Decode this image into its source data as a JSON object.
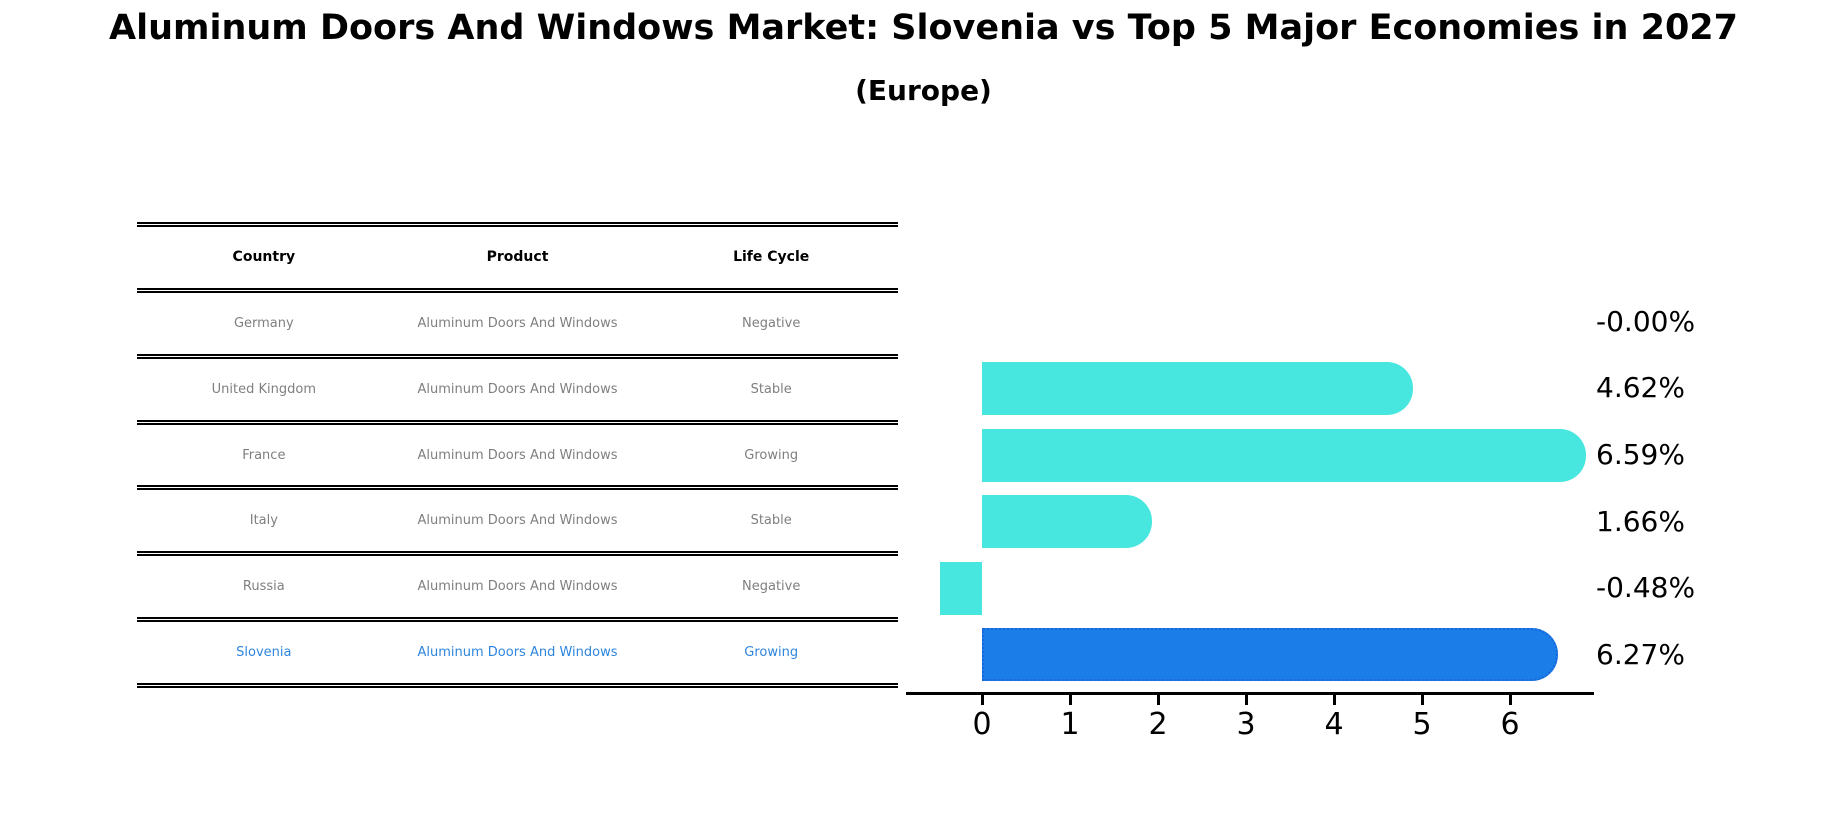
{
  "page": {
    "title": "Aluminum Doors And Windows Market: Slovenia vs Top 5 Major Economies in 2027",
    "subtitle": "(Europe)"
  },
  "table": {
    "headers": [
      "Country",
      "Product",
      "Life Cycle"
    ],
    "rows": [
      {
        "country": "Germany",
        "product": "Aluminum Doors And Windows",
        "life_cycle": "Negative"
      },
      {
        "country": "United Kingdom",
        "product": "Aluminum Doors And Windows",
        "life_cycle": "Stable"
      },
      {
        "country": "France",
        "product": "Aluminum Doors And Windows",
        "life_cycle": "Growing"
      },
      {
        "country": "Italy",
        "product": "Aluminum Doors And Windows",
        "life_cycle": "Stable"
      },
      {
        "country": "Russia",
        "product": "Aluminum Doors And Windows",
        "life_cycle": "Negative"
      },
      {
        "country": "Slovenia",
        "product": "Aluminum Doors And Windows",
        "life_cycle": "Growing"
      }
    ],
    "highlighted_row": "Slovenia"
  },
  "chart_data": {
    "type": "bar",
    "orientation": "horizontal",
    "title": "Aluminum Doors And Windows Market: Slovenia vs Top 5 Major Economies in 2027 (Europe)",
    "categories": [
      "Germany",
      "United Kingdom",
      "France",
      "Italy",
      "Russia",
      "Slovenia"
    ],
    "values": [
      -0.0,
      4.62,
      6.59,
      1.66,
      -0.48,
      6.27
    ],
    "value_labels": [
      "-0.00%",
      "4.62%",
      "6.59%",
      "1.66%",
      "-0.48%",
      "6.27%"
    ],
    "unit": "percent growth",
    "x_ticks": [
      0,
      1,
      2,
      3,
      4,
      5,
      6
    ],
    "xlim": [
      -0.86,
      6.95
    ],
    "grid": false,
    "legend": false,
    "bar_color": "#47e7df",
    "highlight_bar_color": "#1a7de8",
    "highlight_border_color": "#1b66d9",
    "highlight_index": 5
  },
  "colors": {
    "background": "#ffffff",
    "table_header_text": "#000000",
    "table_body_text": "#7f7f7f",
    "highlight_text": "#2e86de",
    "axis": "#000000"
  }
}
